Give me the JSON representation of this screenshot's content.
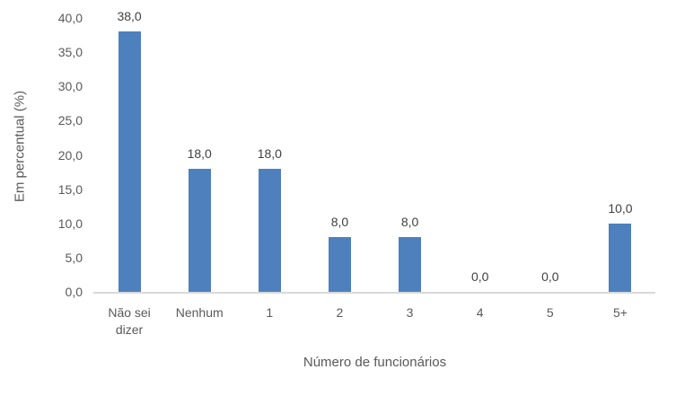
{
  "chart_data": {
    "type": "bar",
    "title": "",
    "categories": [
      "Não sei dizer",
      "Nenhum",
      "1",
      "2",
      "3",
      "4",
      "5",
      "5+"
    ],
    "values": [
      38.0,
      18.0,
      18.0,
      8.0,
      8.0,
      0.0,
      0.0,
      10.0
    ],
    "data_labels": [
      "38,0",
      "18,0",
      "18,0",
      "8,0",
      "8,0",
      "0,0",
      "0,0",
      "10,0"
    ],
    "xlabel": "Número de funcionários",
    "ylabel": "Em percentual (%)",
    "ylim": [
      0,
      40
    ],
    "ytick_step": 5,
    "yticks": [
      "0,0",
      "5,0",
      "10,0",
      "15,0",
      "20,0",
      "25,0",
      "30,0",
      "35,0",
      "40,0"
    ],
    "grid": false,
    "legend": false,
    "bar_color": "#4E80BD",
    "axis_line_color": "#D9D9D9",
    "text_color": "#595959",
    "data_label_color": "#404040"
  }
}
